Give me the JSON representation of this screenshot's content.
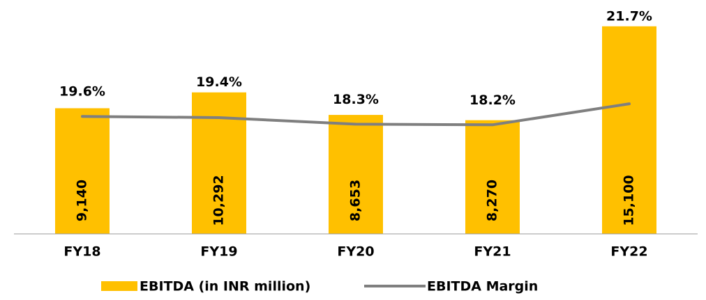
{
  "chart_data": {
    "type": "bar_line",
    "categories": [
      "FY18",
      "FY19",
      "FY20",
      "FY21",
      "FY22"
    ],
    "series": [
      {
        "name": "EBITDA (in INR million)",
        "color": "#FFC000",
        "type": "bar",
        "values": [
          9140,
          10292,
          8653,
          8270,
          15100
        ],
        "value_labels": [
          "9,140",
          "10,292",
          "8,653",
          "8,270",
          "15,100"
        ]
      },
      {
        "name": "EBITDA Margin",
        "color": "#7F7F7F",
        "type": "line",
        "axis": "y2",
        "values": [
          19.6,
          19.4,
          18.3,
          18.2,
          21.7
        ],
        "value_labels": [
          "19.6%",
          "19.4%",
          "18.3%",
          "18.2%",
          "21.7%"
        ]
      }
    ],
    "ylim": [
      0,
      16000
    ],
    "y2lim": [
      0,
      36.7
    ],
    "legend": "bottom"
  }
}
